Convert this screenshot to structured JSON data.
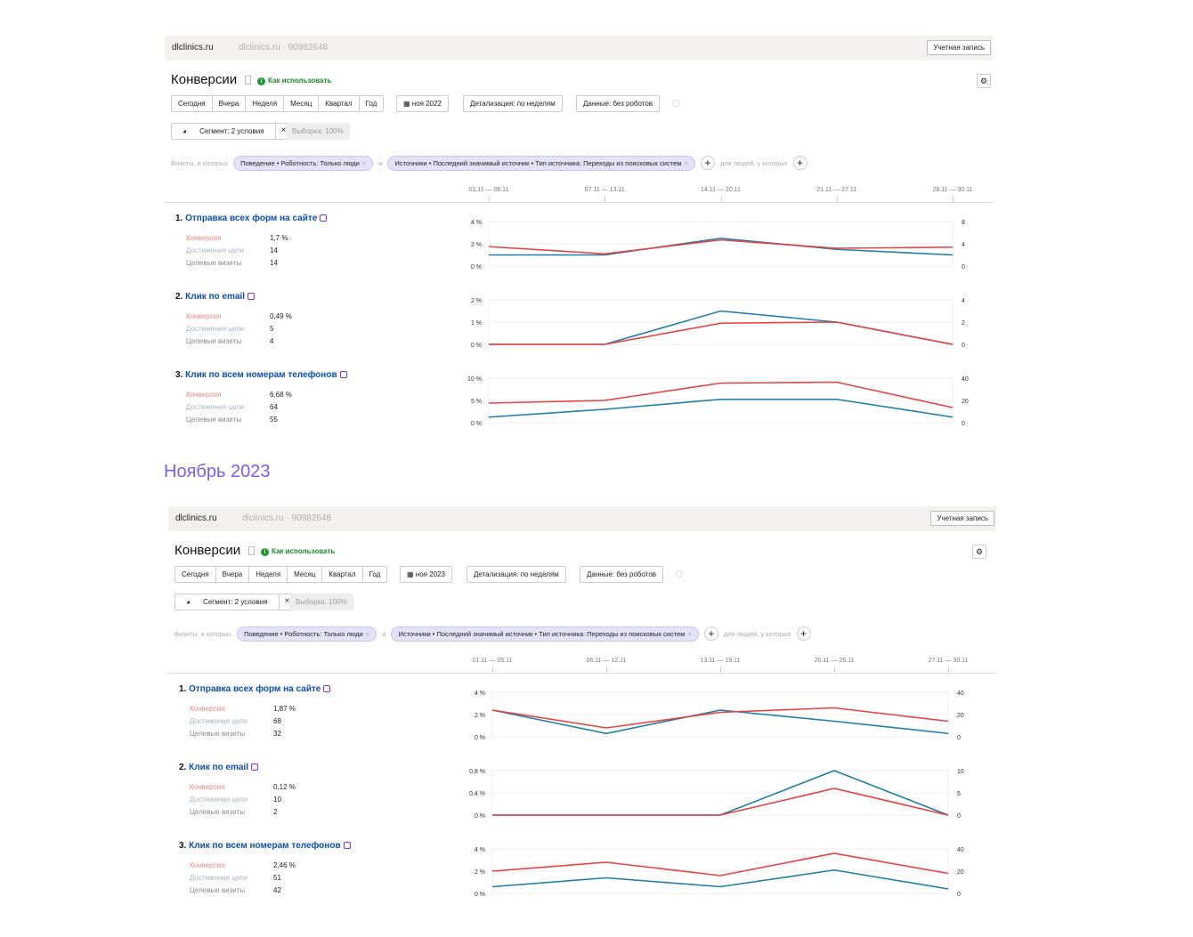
{
  "common": {
    "site": "dlclinics.ru",
    "counter": "dlclinics.ru · 90982648",
    "account": "Учетная запись",
    "title": "Конверсии",
    "how_to": "Как использовать",
    "periods": [
      "Сегодня",
      "Вчера",
      "Неделя",
      "Месяц",
      "Квартал",
      "Год"
    ],
    "detail": "Детализация: по неделям",
    "data_filter": "Данные: без роботов",
    "segment": "Сегмент: 2 условия",
    "sample": "Выборка: 100%",
    "visits_label": "Визиты, в которых",
    "and": "и",
    "chip1": "Поведение • Роботность: Только люди",
    "chip2": "Источники • Последний значимый источник • Тип источника: Переходы из поисковых систем",
    "people_label": "для людей, у которых",
    "metric_labels": [
      "Конверсия",
      "Достижения цели",
      "Целевые визиты"
    ]
  },
  "colors": {
    "conversion": "#e8413f",
    "reaches": "#1e7fa8",
    "link": "#0a4fb0",
    "month": "#7b5cf5"
  },
  "month_title": "Ноябрь 2023",
  "chart_data": [
    {
      "type": "line",
      "date_label": "ноя 2022",
      "x": [
        "01.11 — 06.11",
        "07.11 — 13.11",
        "14.11 — 20.11",
        "21.11 — 27.11",
        "28.11 — 30.11"
      ],
      "goals": [
        {
          "num": "1.",
          "name": "Отправка всех форм на сайте",
          "icon": "form-icon",
          "metrics": [
            "1,7 %",
            "14",
            "14"
          ],
          "left_ticks": [
            "4 %",
            "2 %",
            "0 %"
          ],
          "right_ticks": [
            "8",
            "4",
            "0"
          ],
          "ylim_left": [
            0,
            4
          ],
          "ylim_right": [
            0,
            8
          ],
          "series": [
            {
              "name": "Конверсия",
              "axis": "left",
              "values": [
                1.75,
                1.1,
                2.35,
                1.6,
                1.7
              ]
            },
            {
              "name": "Достижения цели",
              "axis": "right",
              "values": [
                2,
                2,
                5,
                3,
                2
              ]
            }
          ]
        },
        {
          "num": "2.",
          "name": "Клик по email",
          "icon": "email-icon",
          "metrics": [
            "0,49 %",
            "5",
            "4"
          ],
          "left_ticks": [
            "2 %",
            "1 %",
            "0 %"
          ],
          "right_ticks": [
            "4",
            "2",
            "0"
          ],
          "ylim_left": [
            0,
            2
          ],
          "ylim_right": [
            0,
            4
          ],
          "series": [
            {
              "name": "Конверсия",
              "axis": "left",
              "values": [
                0,
                0,
                0.95,
                1.0,
                0
              ]
            },
            {
              "name": "Достижения цели",
              "axis": "right",
              "values": [
                0,
                0,
                3,
                2,
                0
              ]
            }
          ]
        },
        {
          "num": "3.",
          "name": "Клик по всем номерам телефонов",
          "icon": "phone-icon",
          "metrics": [
            "6,68 %",
            "64",
            "55"
          ],
          "left_ticks": [
            "10 %",
            "5 %",
            "0 %"
          ],
          "right_ticks": [
            "40",
            "20",
            "0"
          ],
          "ylim_left": [
            0,
            10
          ],
          "ylim_right": [
            0,
            40
          ],
          "series": [
            {
              "name": "Конверсия",
              "axis": "left",
              "values": [
                4.4,
                5.0,
                8.9,
                9.1,
                3.4
              ]
            },
            {
              "name": "Достижения цели",
              "axis": "right",
              "values": [
                5,
                12,
                21,
                21,
                5
              ]
            }
          ]
        }
      ]
    },
    {
      "type": "line",
      "date_label": "ноя 2023",
      "x": [
        "01.11 — 05.11",
        "06.11 — 12.11",
        "13.11 — 19.11",
        "20.11 — 26.11",
        "27.11 — 30.11"
      ],
      "goals": [
        {
          "num": "1.",
          "name": "Отправка всех форм на сайте",
          "icon": "form-icon",
          "metrics": [
            "1,87 %",
            "68",
            "32"
          ],
          "left_ticks": [
            "4 %",
            "2 %",
            "0 %"
          ],
          "right_ticks": [
            "40",
            "20",
            "0"
          ],
          "ylim_left": [
            0,
            4
          ],
          "ylim_right": [
            0,
            40
          ],
          "series": [
            {
              "name": "Конверсия",
              "axis": "left",
              "values": [
                2.4,
                0.8,
                2.2,
                2.6,
                1.4
              ]
            },
            {
              "name": "Достижения цели",
              "axis": "right",
              "values": [
                24,
                3,
                24,
                14,
                3
              ]
            }
          ]
        },
        {
          "num": "2.",
          "name": "Клик по email",
          "icon": "email-icon",
          "metrics": [
            "0,12 %",
            "10",
            "2"
          ],
          "left_ticks": [
            "0,8 %",
            "0,4 %",
            "0 %"
          ],
          "right_ticks": [
            "10",
            "5",
            "0"
          ],
          "ylim_left": [
            0,
            0.8
          ],
          "ylim_right": [
            0,
            10
          ],
          "series": [
            {
              "name": "Конверсия",
              "axis": "left",
              "values": [
                0,
                0,
                0,
                0.48,
                0
              ]
            },
            {
              "name": "Достижения цели",
              "axis": "right",
              "values": [
                0,
                0,
                0,
                10,
                0
              ]
            }
          ]
        },
        {
          "num": "3.",
          "name": "Клик по всем номерам телефонов",
          "icon": "phone-icon",
          "metrics": [
            "2,46 %",
            "51",
            "42"
          ],
          "left_ticks": [
            "4 %",
            "2 %",
            "0 %"
          ],
          "right_ticks": [
            "40",
            "20",
            "0"
          ],
          "ylim_left": [
            0,
            4
          ],
          "ylim_right": [
            0,
            40
          ],
          "series": [
            {
              "name": "Конверсия",
              "axis": "left",
              "values": [
                2.0,
                2.8,
                1.6,
                3.6,
                1.8
              ]
            },
            {
              "name": "Достижения цели",
              "axis": "right",
              "values": [
                6,
                14,
                6,
                21,
                4
              ]
            }
          ]
        }
      ]
    }
  ]
}
